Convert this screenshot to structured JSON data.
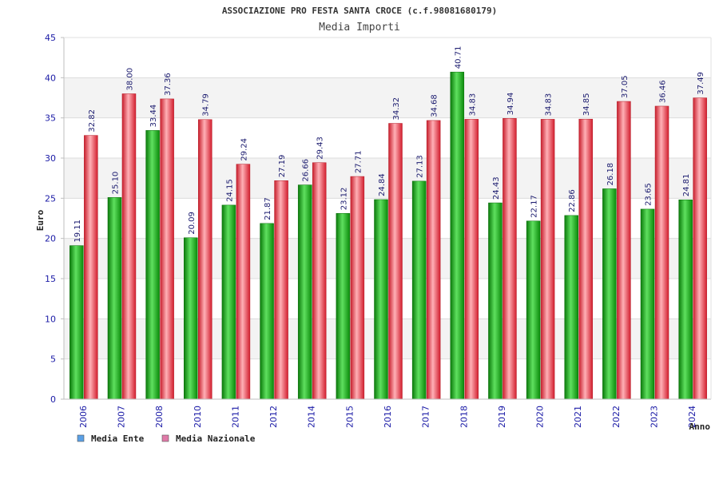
{
  "chart_data": {
    "type": "bar",
    "title": "ASSOCIAZIONE PRO FESTA SANTA CROCE (c.f.98081680179)",
    "subtitle": "Media Importi",
    "xlabel": "Anno",
    "ylabel": "Euro",
    "ylim": [
      0,
      45
    ],
    "yticks": [
      0,
      5,
      10,
      15,
      20,
      25,
      30,
      35,
      40,
      45
    ],
    "grid": true,
    "legend_position": "bottom-left",
    "categories": [
      "2006",
      "2007",
      "2008",
      "2010",
      "2011",
      "2012",
      "2014",
      "2015",
      "2016",
      "2017",
      "2018",
      "2019",
      "2020",
      "2021",
      "2022",
      "2023",
      "2024"
    ],
    "series": [
      {
        "name": "Media Ente",
        "legend_color": "#5aa0e6",
        "bar_color": "#22b022",
        "values": [
          19.11,
          25.1,
          33.44,
          20.09,
          24.15,
          21.87,
          26.66,
          23.12,
          24.84,
          27.13,
          40.71,
          24.43,
          22.17,
          22.86,
          26.18,
          23.65,
          24.81
        ],
        "labels": [
          "19.11",
          "25.10",
          "33.44",
          "20.09",
          "24.15",
          "21.87",
          "26.66",
          "23.12",
          "24.84",
          "27.13",
          "40.71",
          "24.43",
          "22.17",
          "22.86",
          "26.18",
          "23.65",
          "24.81"
        ]
      },
      {
        "name": "Media Nazionale",
        "legend_color": "#e07aa8",
        "bar_color": "#e8434f",
        "values": [
          32.82,
          38.0,
          37.36,
          34.79,
          29.24,
          27.19,
          29.43,
          27.71,
          34.32,
          34.68,
          34.83,
          34.94,
          34.83,
          34.85,
          37.05,
          36.46,
          37.49
        ],
        "labels": [
          "32.82",
          "38.00",
          "37.36",
          "34.79",
          "29.24",
          "27.19",
          "29.43",
          "27.71",
          "34.32",
          "34.68",
          "34.83",
          "34.94",
          "34.83",
          "34.85",
          "37.05",
          "36.46",
          "37.49"
        ]
      }
    ]
  }
}
